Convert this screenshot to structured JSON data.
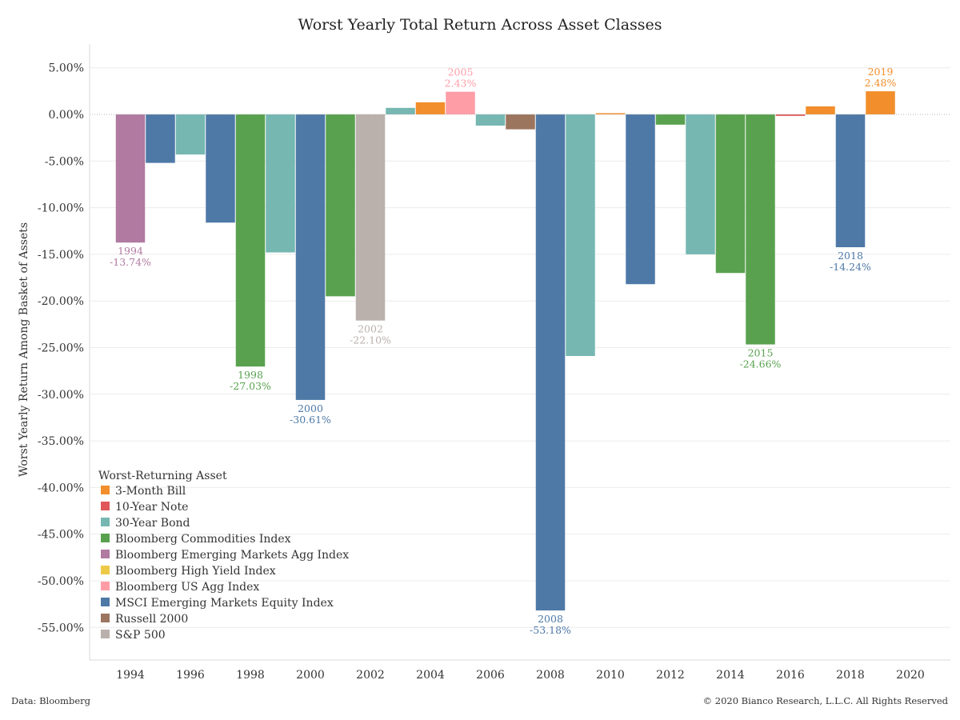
{
  "chart_data": {
    "type": "bar",
    "title": "Worst Yearly Total Return Across Asset Classes",
    "ylabel": "Worst Yearly Return Among Basket of Assets",
    "xlabel": "",
    "ylim": [
      -60,
      6
    ],
    "yticks": [
      5,
      0,
      -5,
      -10,
      -15,
      -20,
      -25,
      -30,
      -35,
      -40,
      -45,
      -50,
      -55
    ],
    "ytick_labels": [
      "5.00%",
      "0.00%",
      "-5.00%",
      "-10.00%",
      "-15.00%",
      "-20.00%",
      "-25.00%",
      "-30.00%",
      "-35.00%",
      "-40.00%",
      "-45.00%",
      "-50.00%",
      "-55.00%"
    ],
    "xticks": [
      "1994",
      "1996",
      "1998",
      "2000",
      "2002",
      "2004",
      "2006",
      "2008",
      "2010",
      "2012",
      "2014",
      "2016",
      "2018",
      "2020"
    ],
    "grid": true,
    "legend": {
      "title": "Worst-Returning Asset",
      "placement": "bottom-left",
      "items": [
        {
          "name": "3-Month Bill",
          "color": "#f28e2b"
        },
        {
          "name": "10-Year Note",
          "color": "#e15759"
        },
        {
          "name": "30-Year Bond",
          "color": "#76b7b2"
        },
        {
          "name": "Bloomberg Commodities Index",
          "color": "#59a14f"
        },
        {
          "name": "Bloomberg Emerging Markets Agg Index",
          "color": "#b07aa1"
        },
        {
          "name": "Bloomberg High Yield Index",
          "color": "#edc948"
        },
        {
          "name": "Bloomberg US Agg Index",
          "color": "#ff9da7"
        },
        {
          "name": "MSCI Emerging Markets Equity Index",
          "color": "#4e79a7"
        },
        {
          "name": "Russell 2000",
          "color": "#9c755f"
        },
        {
          "name": "S&P 500",
          "color": "#bab0ac"
        }
      ]
    },
    "bars": [
      {
        "year": 1994,
        "value": -13.74,
        "asset": "Bloomberg Emerging Markets Agg Index",
        "label_year": "1994",
        "label_value": "-13.74%"
      },
      {
        "year": 1995,
        "value": -5.2,
        "asset": "MSCI Emerging Markets Equity Index"
      },
      {
        "year": 1996,
        "value": -4.3,
        "asset": "30-Year Bond"
      },
      {
        "year": 1997,
        "value": -11.6,
        "asset": "MSCI Emerging Markets Equity Index"
      },
      {
        "year": 1998,
        "value": -27.03,
        "asset": "Bloomberg Commodities Index",
        "label_year": "1998",
        "label_value": "-27.03%"
      },
      {
        "year": 1999,
        "value": -14.8,
        "asset": "30-Year Bond"
      },
      {
        "year": 2000,
        "value": -30.61,
        "asset": "MSCI Emerging Markets Equity Index",
        "label_year": "2000",
        "label_value": "-30.61%"
      },
      {
        "year": 2001,
        "value": -19.5,
        "asset": "Bloomberg Commodities Index"
      },
      {
        "year": 2002,
        "value": -22.1,
        "asset": "S&P 500",
        "label_year": "2002",
        "label_value": "-22.10%"
      },
      {
        "year": 2003,
        "value": 0.7,
        "asset": "30-Year Bond"
      },
      {
        "year": 2004,
        "value": 1.3,
        "asset": "3-Month Bill"
      },
      {
        "year": 2005,
        "value": 2.43,
        "asset": "Bloomberg US Agg Index",
        "label_year": "2005",
        "label_value": "2.43%"
      },
      {
        "year": 2006,
        "value": -1.2,
        "asset": "30-Year Bond"
      },
      {
        "year": 2007,
        "value": -1.6,
        "asset": "Russell 2000"
      },
      {
        "year": 2008,
        "value": -53.18,
        "asset": "MSCI Emerging Markets Equity Index",
        "label_year": "2008",
        "label_value": "-53.18%"
      },
      {
        "year": 2009,
        "value": -25.9,
        "asset": "30-Year Bond"
      },
      {
        "year": 2010,
        "value": 0.13,
        "asset": "3-Month Bill"
      },
      {
        "year": 2011,
        "value": -18.2,
        "asset": "MSCI Emerging Markets Equity Index"
      },
      {
        "year": 2012,
        "value": -1.1,
        "asset": "Bloomberg Commodities Index"
      },
      {
        "year": 2013,
        "value": -15.0,
        "asset": "30-Year Bond"
      },
      {
        "year": 2014,
        "value": -17.0,
        "asset": "Bloomberg Commodities Index"
      },
      {
        "year": 2015,
        "value": -24.66,
        "asset": "Bloomberg Commodities Index",
        "label_year": "2015",
        "label_value": "-24.66%"
      },
      {
        "year": 2016,
        "value": -0.16,
        "asset": "10-Year Note"
      },
      {
        "year": 2017,
        "value": 0.86,
        "asset": "3-Month Bill"
      },
      {
        "year": 2018,
        "value": -14.24,
        "asset": "MSCI Emerging Markets Equity Index",
        "label_year": "2018",
        "label_value": "-14.24%"
      },
      {
        "year": 2019,
        "value": 2.48,
        "asset": "3-Month Bill",
        "label_year": "2019",
        "label_value": "2.48%"
      }
    ]
  },
  "footer": {
    "source": "Data: Bloomberg",
    "copyright": "© 2020 Bianco Research, L.L.C. All Rights Reserved"
  }
}
